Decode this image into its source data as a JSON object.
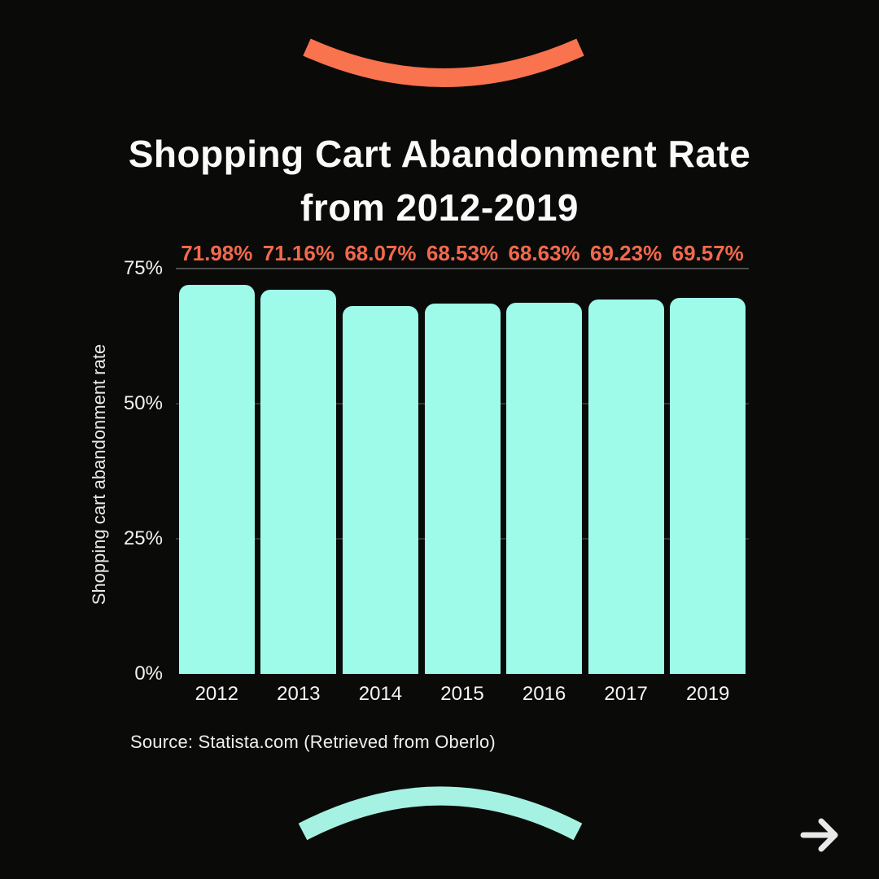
{
  "colors": {
    "background": "#0A0A09",
    "coral_accent": "#F8734E",
    "mint_accent": "#A5F2E3",
    "arrow": "#E8E8E8"
  },
  "title": {
    "line1": "Shopping Cart Abandonment Rate",
    "line2": "from 2012-2019"
  },
  "chart_data": {
    "type": "bar",
    "title": "Shopping Cart Abandonment Rate from 2012-2019",
    "categories": [
      "2012",
      "2013",
      "2014",
      "2015",
      "2016",
      "2017",
      "2019"
    ],
    "values": [
      71.98,
      71.16,
      68.07,
      68.53,
      68.63,
      69.23,
      69.57
    ],
    "value_labels": [
      "71.98%",
      "71.16%",
      "68.07%",
      "68.53%",
      "68.63%",
      "69.23%",
      "69.57%"
    ],
    "xlabel": "",
    "ylabel": "Shopping cart abandonment rate",
    "ylim": [
      0,
      75
    ],
    "ytick_values": [
      0,
      25,
      50,
      75
    ],
    "ytick_labels": [
      "0%",
      "25%",
      "50%",
      "75%"
    ],
    "grid": true,
    "legend": false,
    "bar_color": "#9EFBE9",
    "value_label_color": "#F2694B"
  },
  "source": {
    "text": "Source: Statista.com (Retrieved from Oberlo)"
  }
}
